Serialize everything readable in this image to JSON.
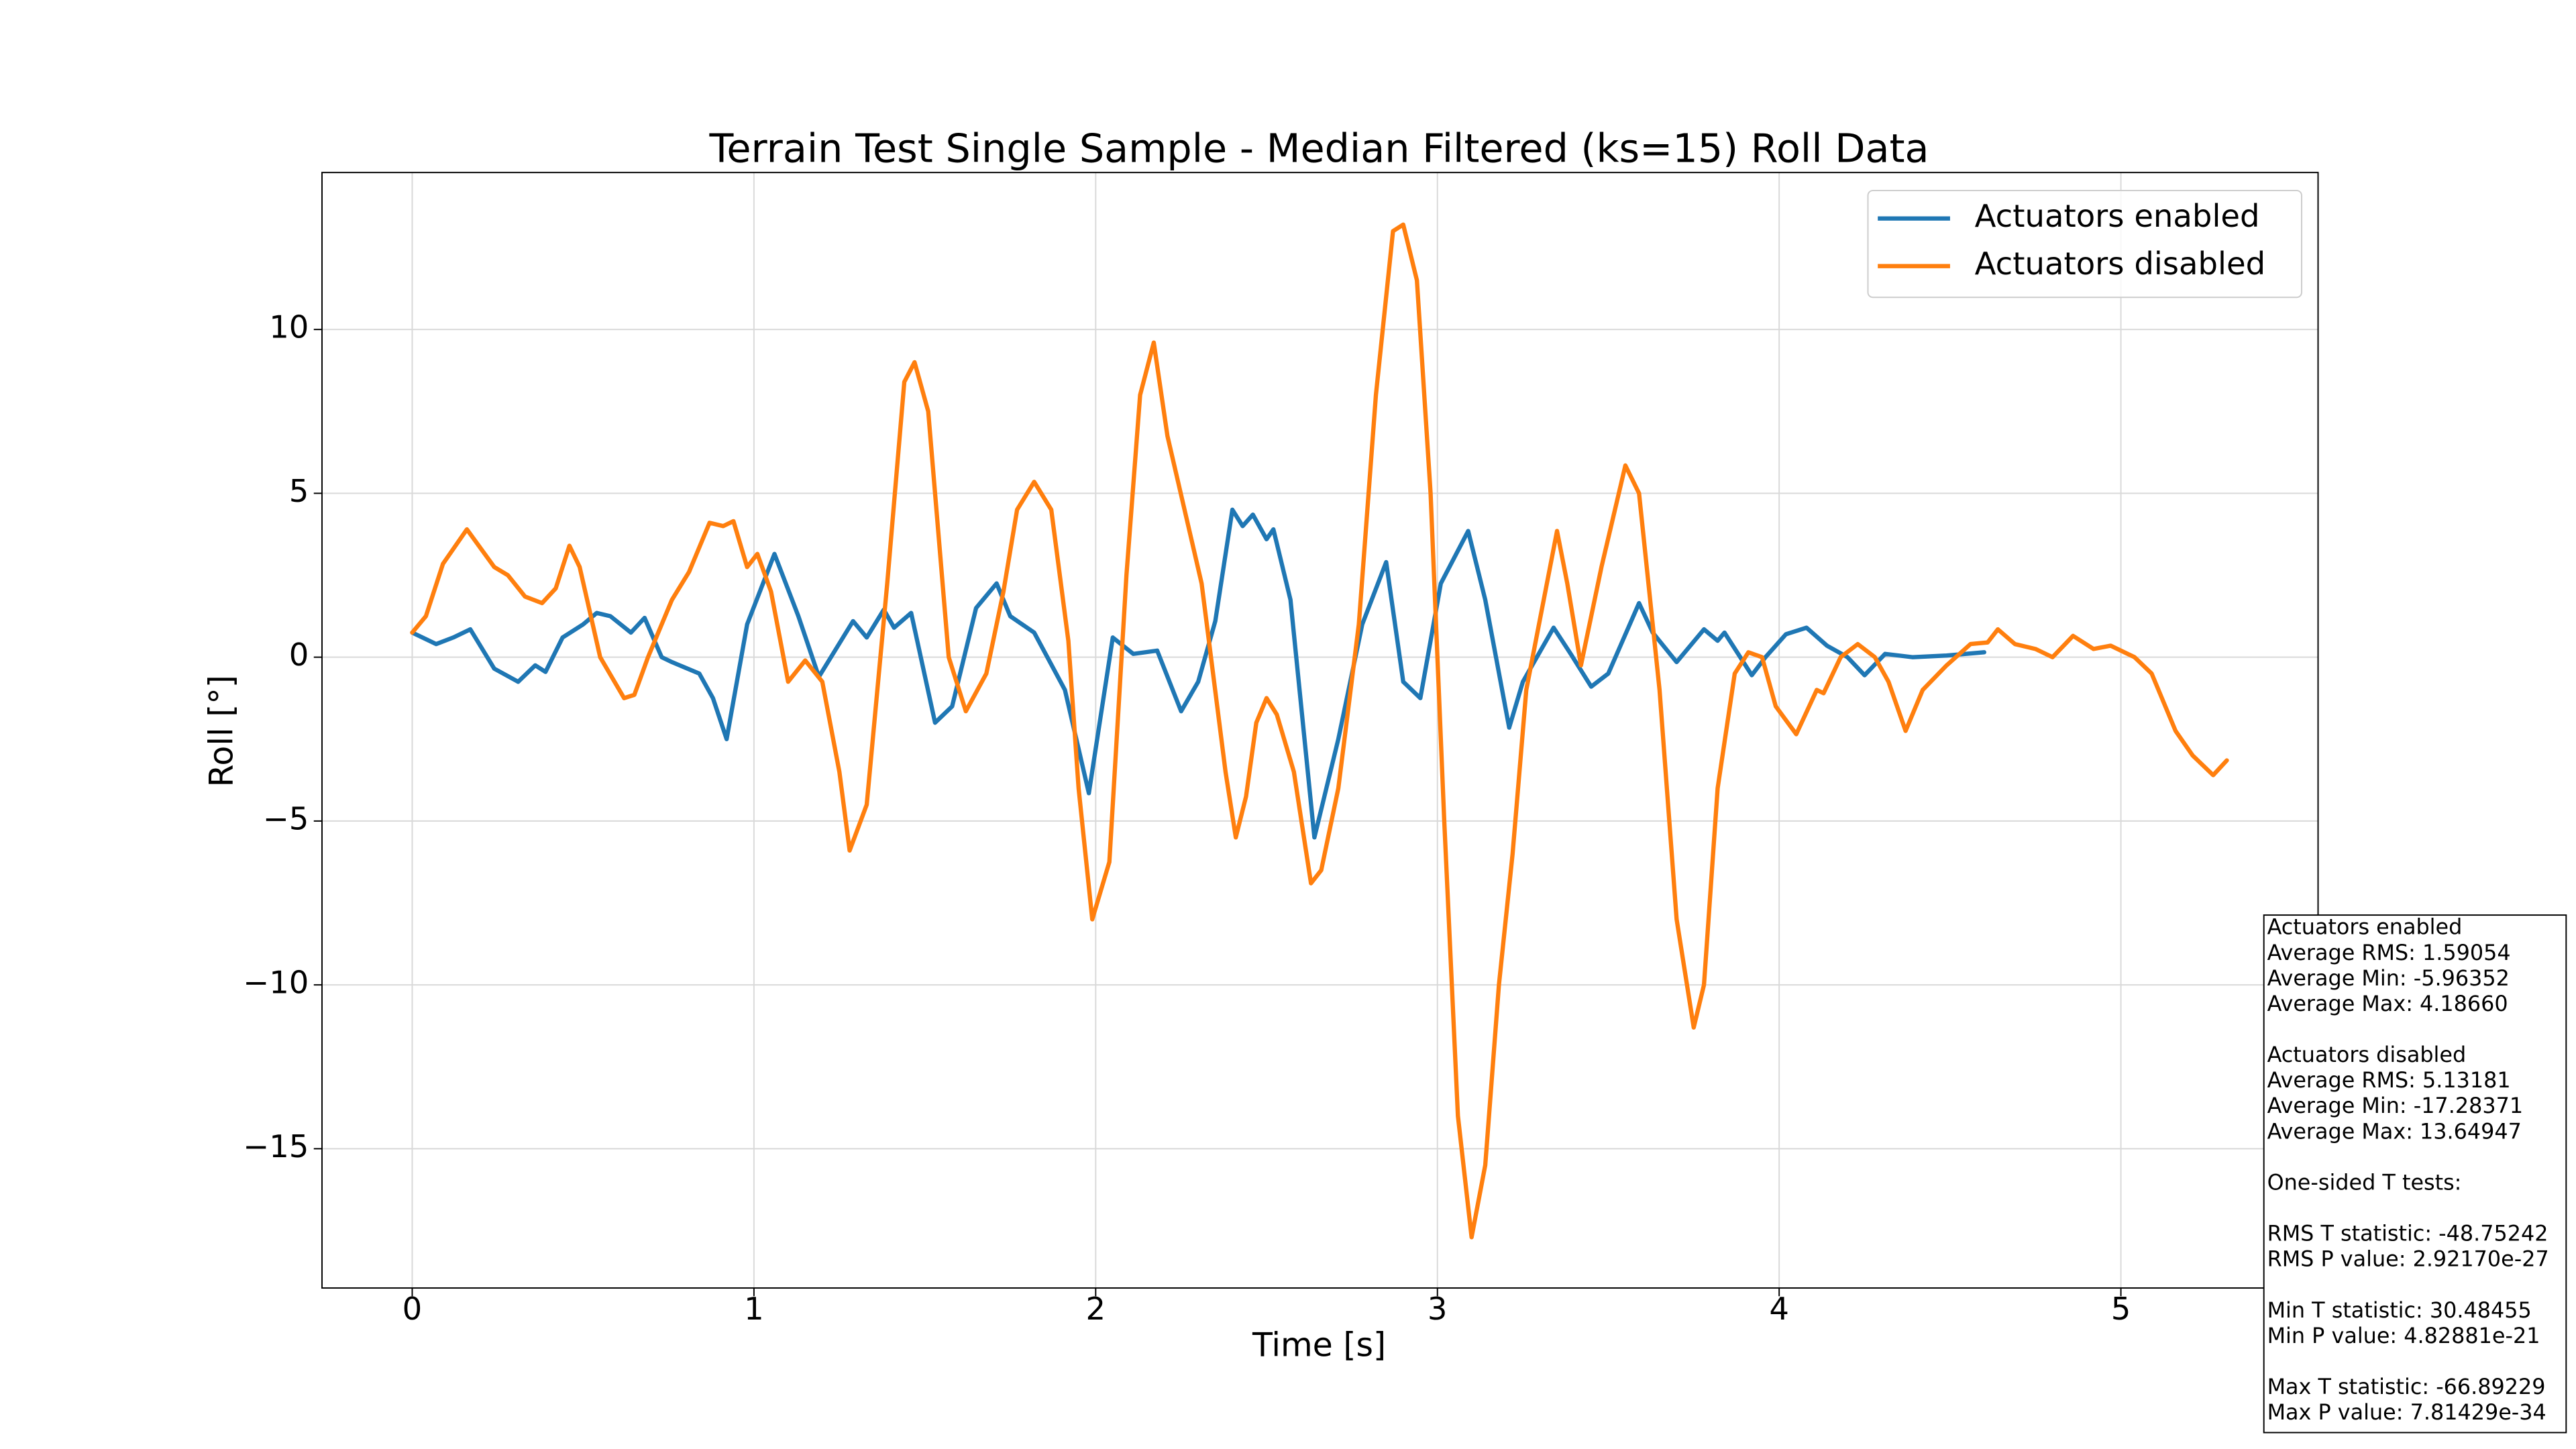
{
  "chart_data": {
    "type": "line",
    "title": "Terrain Test Single Sample - Median Filtered (ks=15) Roll Data",
    "x_label": "Time [s]",
    "y_label": "Roll [°]",
    "xlim": [
      -0.264,
      5.577
    ],
    "ylim": [
      -19.25,
      14.79
    ],
    "xticks": [
      0,
      1,
      2,
      3,
      4,
      5
    ],
    "yticks": [
      10,
      5,
      0,
      {
        "value": -5,
        "label": "−5"
      },
      {
        "value": -10,
        "label": "−10"
      },
      {
        "value": -15,
        "label": "−15"
      }
    ],
    "grid": true,
    "legend": "upper right",
    "series": [
      {
        "name": "Actuators enabled",
        "color": "#1f77b4",
        "x": [
          0.0,
          0.07,
          0.12,
          0.17,
          0.24,
          0.31,
          0.36,
          0.39,
          0.44,
          0.5,
          0.54,
          0.58,
          0.64,
          0.68,
          0.73,
          0.76,
          0.84,
          0.88,
          0.92,
          0.98,
          1.06,
          1.13,
          1.19,
          1.29,
          1.33,
          1.38,
          1.41,
          1.46,
          1.53,
          1.58,
          1.65,
          1.71,
          1.75,
          1.82,
          1.91,
          1.98,
          2.05,
          2.11,
          2.18,
          2.25,
          2.3,
          2.35,
          2.4,
          2.43,
          2.46,
          2.5,
          2.52,
          2.57,
          2.64,
          2.71,
          2.78,
          2.85,
          2.9,
          2.95,
          3.01,
          3.09,
          3.14,
          3.21,
          3.25,
          3.34,
          3.39,
          3.45,
          3.5,
          3.59,
          3.63,
          3.7,
          3.78,
          3.82,
          3.84,
          3.92,
          3.96,
          4.02,
          4.08,
          4.14,
          4.2,
          4.25,
          4.31,
          4.39,
          4.49,
          4.6
        ],
        "values": [
          0.75,
          0.4,
          0.6,
          0.85,
          -0.35,
          -0.75,
          -0.25,
          -0.45,
          0.6,
          1.0,
          1.35,
          1.25,
          0.75,
          1.2,
          0.0,
          -0.15,
          -0.5,
          -1.25,
          -2.5,
          1.0,
          3.15,
          1.25,
          -0.6,
          1.1,
          0.6,
          1.45,
          0.9,
          1.35,
          -2.0,
          -1.5,
          1.5,
          2.25,
          1.25,
          0.75,
          -1.0,
          -4.15,
          0.6,
          0.1,
          0.2,
          -1.65,
          -0.75,
          1.1,
          4.5,
          4.0,
          4.35,
          3.6,
          3.9,
          1.75,
          -5.5,
          -2.5,
          1.0,
          2.9,
          -0.75,
          -1.25,
          2.25,
          3.85,
          1.75,
          -2.15,
          -0.75,
          0.9,
          0.1,
          -0.9,
          -0.5,
          1.65,
          0.75,
          -0.15,
          0.85,
          0.5,
          0.75,
          -0.55,
          0.0,
          0.7,
          0.9,
          0.35,
          0.0,
          -0.55,
          0.1,
          0.0,
          0.05,
          0.15
        ]
      },
      {
        "name": "Actuators disabled",
        "color": "#ff7f0e",
        "x": [
          0.0,
          0.04,
          0.09,
          0.16,
          0.24,
          0.28,
          0.33,
          0.38,
          0.42,
          0.46,
          0.49,
          0.55,
          0.62,
          0.65,
          0.69,
          0.76,
          0.81,
          0.87,
          0.91,
          0.94,
          0.98,
          1.01,
          1.05,
          1.1,
          1.15,
          1.2,
          1.25,
          1.28,
          1.33,
          1.39,
          1.44,
          1.47,
          1.51,
          1.57,
          1.62,
          1.68,
          1.73,
          1.77,
          1.82,
          1.87,
          1.92,
          1.95,
          1.99,
          2.04,
          2.09,
          2.13,
          2.17,
          2.21,
          2.26,
          2.31,
          2.38,
          2.41,
          2.44,
          2.47,
          2.5,
          2.53,
          2.58,
          2.63,
          2.66,
          2.71,
          2.77,
          2.82,
          2.87,
          2.9,
          2.94,
          2.98,
          3.02,
          3.06,
          3.1,
          3.14,
          3.18,
          3.22,
          3.26,
          3.35,
          3.38,
          3.42,
          3.48,
          3.55,
          3.59,
          3.65,
          3.7,
          3.75,
          3.78,
          3.82,
          3.87,
          3.91,
          3.95,
          3.99,
          4.05,
          4.11,
          4.13,
          4.18,
          4.23,
          4.28,
          4.32,
          4.37,
          4.42,
          4.49,
          4.56,
          4.61,
          4.64,
          4.69,
          4.75,
          4.8,
          4.86,
          4.92,
          4.97,
          5.04,
          5.09,
          5.16,
          5.21,
          5.27,
          5.31
        ],
        "values": [
          0.75,
          1.25,
          2.85,
          3.9,
          2.75,
          2.5,
          1.85,
          1.65,
          2.1,
          3.4,
          2.75,
          0.0,
          -1.25,
          -1.15,
          0.0,
          1.75,
          2.6,
          4.1,
          4.0,
          4.15,
          2.75,
          3.15,
          2.0,
          -0.75,
          -0.1,
          -0.75,
          -3.5,
          -5.9,
          -4.5,
          2.25,
          8.4,
          9.0,
          7.5,
          0.0,
          -1.65,
          -0.5,
          2.0,
          4.5,
          5.35,
          4.5,
          0.5,
          -4.0,
          -8.0,
          -6.25,
          2.5,
          8.0,
          9.6,
          6.75,
          4.5,
          2.25,
          -3.5,
          -5.5,
          -4.25,
          -2.0,
          -1.25,
          -1.75,
          -3.5,
          -6.9,
          -6.5,
          -4.0,
          1.0,
          8.0,
          13.0,
          13.2,
          11.5,
          5.0,
          -5.0,
          -14.0,
          -17.7,
          -15.5,
          -10.0,
          -6.0,
          -1.0,
          3.85,
          2.25,
          -0.25,
          2.75,
          5.85,
          5.0,
          -1.0,
          -8.0,
          -11.3,
          -10.0,
          -4.0,
          -0.5,
          0.15,
          0.0,
          -1.5,
          -2.35,
          -1.0,
          -1.1,
          0.0,
          0.4,
          0.0,
          -0.75,
          -2.25,
          -1.0,
          -0.25,
          0.4,
          0.45,
          0.85,
          0.4,
          0.25,
          0.0,
          0.65,
          0.25,
          0.35,
          0.0,
          -0.5,
          -2.25,
          -3.0,
          -3.6,
          -3.15
        ]
      }
    ],
    "stats_box": [
      [
        "Actuators enabled",
        "Average RMS: 1.59054",
        "Average Min: -5.96352",
        "Average Max: 4.18660"
      ],
      [
        "Actuators disabled",
        "Average RMS: 5.13181",
        "Average Min: -17.28371",
        "Average Max: 13.64947"
      ],
      [
        "One-sided T tests:"
      ],
      [
        "RMS T statistic: -48.75242",
        "RMS P value: 2.92170e-27"
      ],
      [
        "Min T statistic: 30.48455",
        "Min P value: 4.82881e-21"
      ],
      [
        "Max T statistic: -66.89229",
        "Max P value: 7.81429e-34"
      ]
    ]
  }
}
